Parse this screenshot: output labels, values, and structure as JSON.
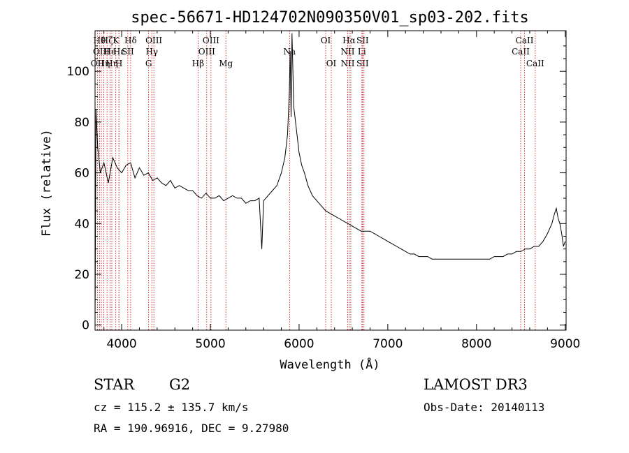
{
  "chart_data": {
    "type": "line",
    "title": "spec-56671-HD124702N090350V01_sp03-202.fits",
    "xlabel": "Wavelength (Å)",
    "ylabel": "Flux (relative)",
    "xlim": [
      3700,
      9010
    ],
    "ylim": [
      -2,
      116
    ],
    "xticks": [
      4000,
      5000,
      6000,
      7000,
      8000,
      9000
    ],
    "yticks": [
      0,
      20,
      40,
      60,
      80,
      100
    ],
    "line_color": "#000000",
    "marker_color": "#cc0000",
    "series": [
      {
        "x": [
          3700,
          3710,
          3730,
          3760,
          3800,
          3850,
          3900,
          3950,
          4000,
          4050,
          4100,
          4150,
          4200,
          4250,
          4300,
          4350,
          4400,
          4450,
          4500,
          4550,
          4600,
          4650,
          4700,
          4750,
          4800,
          4850,
          4900,
          4950,
          5000,
          5050,
          5100,
          5150,
          5200,
          5250,
          5300,
          5350,
          5400,
          5450,
          5500,
          5550,
          5580,
          5600,
          5650,
          5700,
          5750,
          5800,
          5840,
          5870,
          5890,
          5900,
          5910,
          5920,
          5930,
          5940,
          5960,
          5980,
          6000,
          6030,
          6060,
          6100,
          6150,
          6200,
          6250,
          6300,
          6350,
          6400,
          6450,
          6500,
          6550,
          6600,
          6650,
          6700,
          6750,
          6800,
          6850,
          6900,
          6950,
          7000,
          7050,
          7100,
          7150,
          7200,
          7250,
          7300,
          7350,
          7400,
          7450,
          7500,
          7550,
          7600,
          7650,
          7700,
          7750,
          7800,
          7850,
          7900,
          7950,
          8000,
          8050,
          8100,
          8150,
          8200,
          8250,
          8300,
          8350,
          8400,
          8450,
          8500,
          8550,
          8600,
          8650,
          8700,
          8750,
          8800,
          8850,
          8880,
          8900,
          8920,
          8940,
          8960,
          8980,
          9000
        ],
        "y": [
          0,
          85,
          70,
          60,
          64,
          56,
          66,
          62,
          60,
          63,
          64,
          58,
          62,
          59,
          60,
          57,
          58,
          56,
          55,
          57,
          54,
          55,
          54,
          53,
          53,
          51,
          50,
          52,
          50,
          50,
          51,
          49,
          50,
          51,
          50,
          50,
          48,
          49,
          49,
          50,
          30,
          49,
          51,
          53,
          55,
          60,
          66,
          75,
          92,
          108,
          82,
          115,
          100,
          86,
          80,
          74,
          68,
          63,
          60,
          55,
          51,
          49,
          47,
          45,
          44,
          43,
          42,
          41,
          40,
          39,
          38,
          37,
          37,
          37,
          36,
          35,
          34,
          33,
          32,
          31,
          30,
          29,
          28,
          28,
          27,
          27,
          27,
          26,
          26,
          26,
          26,
          26,
          26,
          26,
          26,
          26,
          26,
          26,
          26,
          26,
          26,
          27,
          27,
          27,
          28,
          28,
          29,
          29,
          30,
          30,
          31,
          31,
          33,
          36,
          40,
          44,
          46,
          42,
          40,
          36,
          31,
          33
        ]
      }
    ],
    "line_markers": [
      {
        "x": 3727,
        "labels": [
          {
            "text": "OII",
            "row": 3
          }
        ]
      },
      {
        "x": 3750,
        "labels": [
          {
            "text": "Hθ",
            "row": 1
          }
        ]
      },
      {
        "x": 3771,
        "labels": [
          {
            "text": "OIII",
            "row": 2
          }
        ]
      },
      {
        "x": 3798,
        "labels": [
          {
            "text": "Hη",
            "row": 3
          }
        ]
      },
      {
        "x": 3835,
        "labels": [
          {
            "text": "Hζ",
            "row": 1
          }
        ]
      },
      {
        "x": 3869,
        "labels": [
          {
            "text": "He",
            "row": 2
          }
        ]
      },
      {
        "x": 3889,
        "labels": [
          {
            "text": "Hη",
            "row": 3
          }
        ]
      },
      {
        "x": 3934,
        "labels": [
          {
            "text": "K",
            "row": 1
          }
        ]
      },
      {
        "x": 3969,
        "labels": [
          {
            "text": "H",
            "row": 3
          }
        ]
      },
      {
        "x": 3970,
        "labels": [
          {
            "text": "Hε",
            "row": 2
          }
        ]
      },
      {
        "x": 4069,
        "labels": [
          {
            "text": "SII",
            "row": 2
          }
        ]
      },
      {
        "x": 4101,
        "labels": [
          {
            "text": "Hδ",
            "row": 1
          }
        ]
      },
      {
        "x": 4304,
        "labels": [
          {
            "text": "G",
            "row": 3
          }
        ]
      },
      {
        "x": 4340,
        "labels": [
          {
            "text": "Hγ",
            "row": 2
          }
        ]
      },
      {
        "x": 4363,
        "labels": [
          {
            "text": "OIII",
            "row": 1
          }
        ]
      },
      {
        "x": 4861,
        "labels": [
          {
            "text": "Hβ",
            "row": 3
          }
        ]
      },
      {
        "x": 4959,
        "labels": [
          {
            "text": "OIII",
            "row": 2
          }
        ]
      },
      {
        "x": 5007,
        "labels": [
          {
            "text": "OIII",
            "row": 1
          }
        ]
      },
      {
        "x": 5175,
        "labels": [
          {
            "text": "Mg",
            "row": 3
          }
        ]
      },
      {
        "x": 5893,
        "labels": [
          {
            "text": "Na",
            "row": 2
          }
        ]
      },
      {
        "x": 6300,
        "labels": [
          {
            "text": "OI",
            "row": 1
          }
        ]
      },
      {
        "x": 6363,
        "labels": [
          {
            "text": "OI",
            "row": 3
          }
        ]
      },
      {
        "x": 6548,
        "labels": [
          {
            "text": "NII",
            "row": 2
          },
          {
            "text": "NII",
            "row": 3
          }
        ]
      },
      {
        "x": 6563,
        "labels": [
          {
            "text": "Hα",
            "row": 1
          }
        ]
      },
      {
        "x": 6583,
        "labels": []
      },
      {
        "x": 6708,
        "labels": [
          {
            "text": "Li",
            "row": 2
          }
        ]
      },
      {
        "x": 6716,
        "labels": [
          {
            "text": "SII",
            "row": 1
          },
          {
            "text": "SII",
            "row": 3
          }
        ]
      },
      {
        "x": 6731,
        "labels": []
      },
      {
        "x": 8498,
        "labels": [
          {
            "text": "CaII",
            "row": 2
          }
        ]
      },
      {
        "x": 8542,
        "labels": [
          {
            "text": "CaII",
            "row": 1
          }
        ]
      },
      {
        "x": 8662,
        "labels": [
          {
            "text": "CaII",
            "row": 3
          }
        ]
      }
    ]
  },
  "info": {
    "object_class": "STAR",
    "subclass": "G2",
    "survey": "LAMOST DR3",
    "velocity": "cz = 115.2 ± 135.7 km/s",
    "obs_date": "Obs-Date: 20140113",
    "coords": "RA = 190.96916, DEC =    9.27980"
  }
}
